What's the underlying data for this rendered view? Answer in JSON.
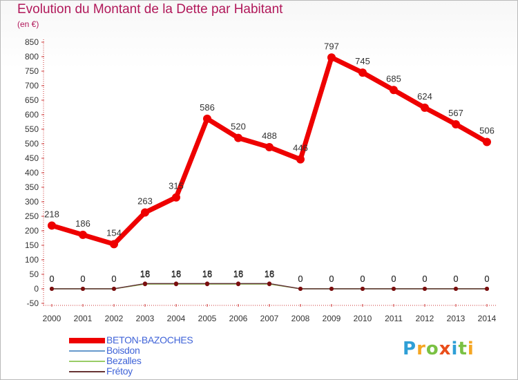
{
  "title": "Evolution du Montant de la Dette par Habitant",
  "subtitle": "(en €)",
  "logo": {
    "letters": [
      "P",
      "r",
      "o",
      "x",
      "i",
      "t",
      "i"
    ],
    "colors": [
      "#2f9fd6",
      "#f5a623",
      "#7ac143",
      "#e94e1b",
      "#2f9fd6",
      "#7ac143",
      "#f5a623"
    ]
  },
  "chart_data": {
    "type": "line",
    "title": "Evolution du Montant de la Dette par Habitant",
    "ylabel": "(en €)",
    "xlabel": "",
    "x": [
      2000,
      2001,
      2002,
      2003,
      2004,
      2005,
      2006,
      2007,
      2008,
      2009,
      2010,
      2011,
      2012,
      2013,
      2014
    ],
    "ylim": [
      -50,
      850
    ],
    "yticks": [
      -50,
      0,
      50,
      100,
      150,
      200,
      250,
      300,
      350,
      400,
      450,
      500,
      550,
      600,
      650,
      700,
      750,
      800,
      850
    ],
    "grid": false,
    "legend_position": "bottom-left",
    "series": [
      {
        "name": "BETON-BAZOCHES",
        "color": "#ee0000",
        "values": [
          218,
          186,
          154,
          263,
          315,
          586,
          520,
          488,
          446,
          797,
          745,
          685,
          624,
          567,
          506
        ]
      },
      {
        "name": "Boisdon",
        "color": "#6699cc",
        "values": [
          0,
          0,
          0,
          18,
          18,
          18,
          18,
          18,
          0,
          0,
          0,
          0,
          0,
          0,
          0
        ]
      },
      {
        "name": "Bezalles",
        "color": "#99cc66",
        "values": [
          0,
          0,
          0,
          16,
          16,
          16,
          16,
          16,
          0,
          0,
          0,
          0,
          0,
          0,
          0
        ]
      },
      {
        "name": "Frétoy",
        "color": "#663333",
        "values": [
          0,
          0,
          0,
          18,
          18,
          18,
          18,
          18,
          0,
          0,
          0,
          0,
          0,
          0,
          0
        ]
      }
    ]
  }
}
